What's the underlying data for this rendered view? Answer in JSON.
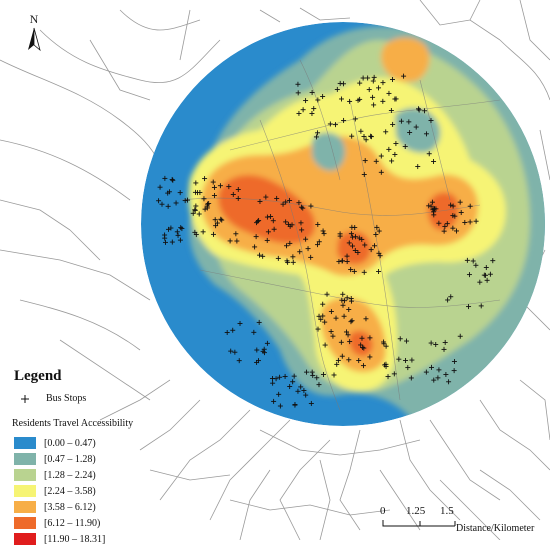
{
  "north_label": "N",
  "legend": {
    "title": "Legend",
    "bus_stops_label": "Bus Stops",
    "accessibility_title": "Residents Travel Accessibility",
    "classes": [
      {
        "label": "[0.00 – 0.47)",
        "color": "#2a8bcc"
      },
      {
        "label": "[0.47 – 1.28)",
        "color": "#7fb3aa"
      },
      {
        "label": "[1.28 – 2.24)",
        "color": "#b9d390"
      },
      {
        "label": "[2.24 – 3.58)",
        "color": "#f6f474"
      },
      {
        "label": "[3.58 – 6.12)",
        "color": "#f7ae47"
      },
      {
        "label": "[6.12 – 11.90)",
        "color": "#ee6a2a"
      },
      {
        "label": "[11.90 – 18.31]",
        "color": "#e01d1d"
      }
    ]
  },
  "scale_bar": {
    "ticks": [
      "0",
      "1.25",
      "1.5"
    ],
    "unit": "Distance/Kilometer"
  }
}
